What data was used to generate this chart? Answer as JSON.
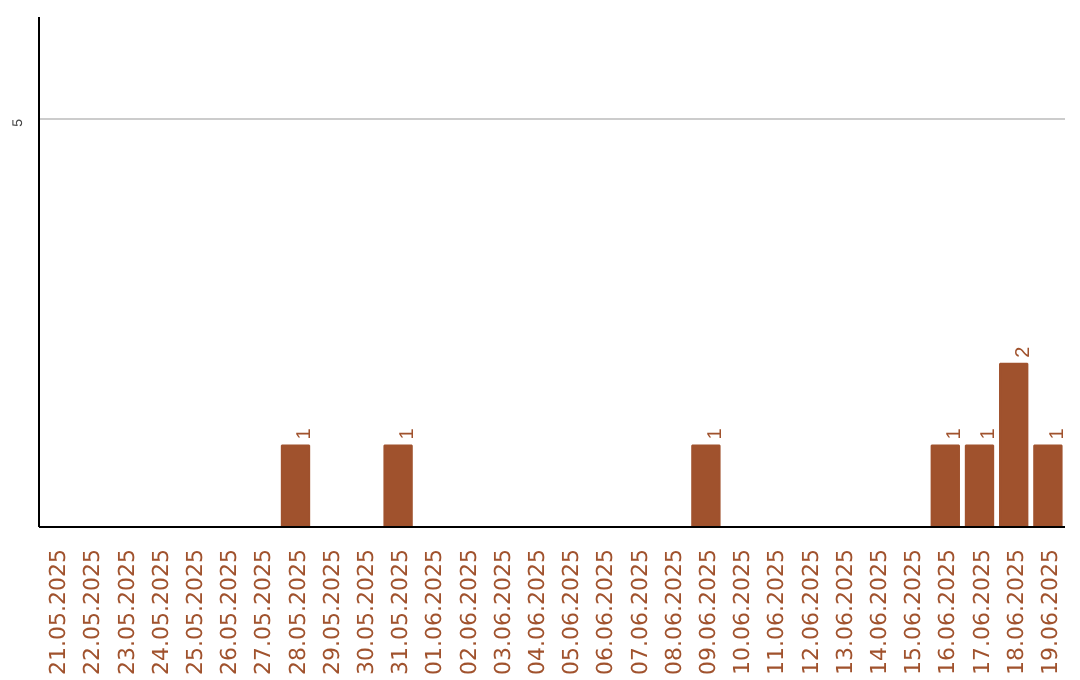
{
  "chart_data": {
    "type": "bar",
    "categories": [
      "21.05.2025",
      "22.05.2025",
      "23.05.2025",
      "24.05.2025",
      "25.05.2025",
      "26.05.2025",
      "27.05.2025",
      "28.05.2025",
      "29.05.2025",
      "30.05.2025",
      "31.05.2025",
      "01.06.2025",
      "02.06.2025",
      "03.06.2025",
      "04.06.2025",
      "05.06.2025",
      "06.06.2025",
      "07.06.2025",
      "08.06.2025",
      "09.06.2025",
      "10.06.2025",
      "11.06.2025",
      "12.06.2025",
      "13.06.2025",
      "14.06.2025",
      "15.06.2025",
      "16.06.2025",
      "17.06.2025",
      "18.06.2025",
      "19.06.2025"
    ],
    "values": [
      0,
      0,
      0,
      0,
      0,
      0,
      0,
      1,
      0,
      0,
      1,
      0,
      0,
      0,
      0,
      0,
      0,
      0,
      0,
      1,
      0,
      0,
      0,
      0,
      0,
      0,
      1,
      1,
      2,
      1
    ],
    "value_labels": [
      null,
      null,
      null,
      null,
      null,
      null,
      null,
      "1",
      null,
      null,
      "1",
      null,
      null,
      null,
      null,
      null,
      null,
      null,
      null,
      "1",
      null,
      null,
      null,
      null,
      null,
      null,
      "1",
      "1",
      "2",
      "1"
    ],
    "color": "#a0522d",
    "ylim": [
      0,
      6.25
    ],
    "yticks": [
      5
    ],
    "grid": "y"
  }
}
